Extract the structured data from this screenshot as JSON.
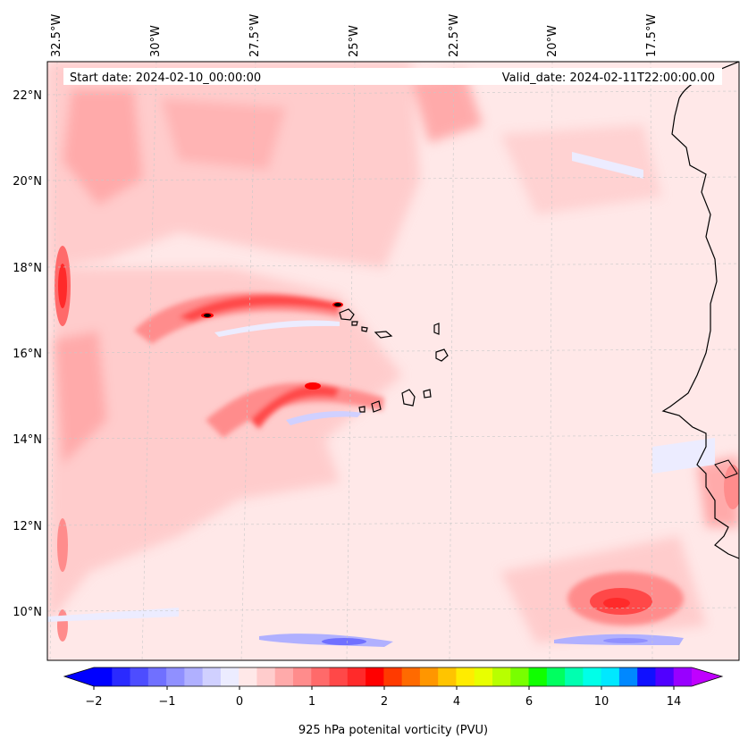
{
  "header": {
    "start_date": "Start date: 2024-02-10_00:00:00",
    "valid_date": "Valid_date: 2024-02-11T22:00:00.00"
  },
  "longitude_labels": [
    "32.5°W",
    "30°W",
    "27.5°W",
    "25°W",
    "22.5°W",
    "20°W",
    "17.5°W"
  ],
  "latitude_labels": [
    "22°N",
    "20°N",
    "18°N",
    "16°N",
    "14°N",
    "12°N",
    "10°N"
  ],
  "colorbar": {
    "title": "925 hPa potenital vorticity (PVU)",
    "tick_labels": [
      "−2",
      "−1",
      "0",
      "1",
      "2",
      "4",
      "6",
      "10",
      "14"
    ],
    "colors": [
      "#0000ff",
      "#2a2aff",
      "#4d4dff",
      "#7070ff",
      "#9090ff",
      "#b0b0ff",
      "#d0d0ff",
      "#ececff",
      "#ffe8e8",
      "#ffcccc",
      "#ffaaaa",
      "#ff8c8c",
      "#ff6a6a",
      "#ff4848",
      "#ff2a2a",
      "#ff0000",
      "#ff3a00",
      "#ff6a00",
      "#ff9600",
      "#ffc400",
      "#ffec00",
      "#e8ff00",
      "#b8ff00",
      "#78ff00",
      "#10ff00",
      "#00ff60",
      "#00ffb0",
      "#00ffe8",
      "#00e8ff",
      "#0088ff",
      "#1010ff",
      "#5000ff",
      "#9800ff"
    ],
    "under_color": "#0000ff",
    "over_color": "#c000ff"
  }
}
